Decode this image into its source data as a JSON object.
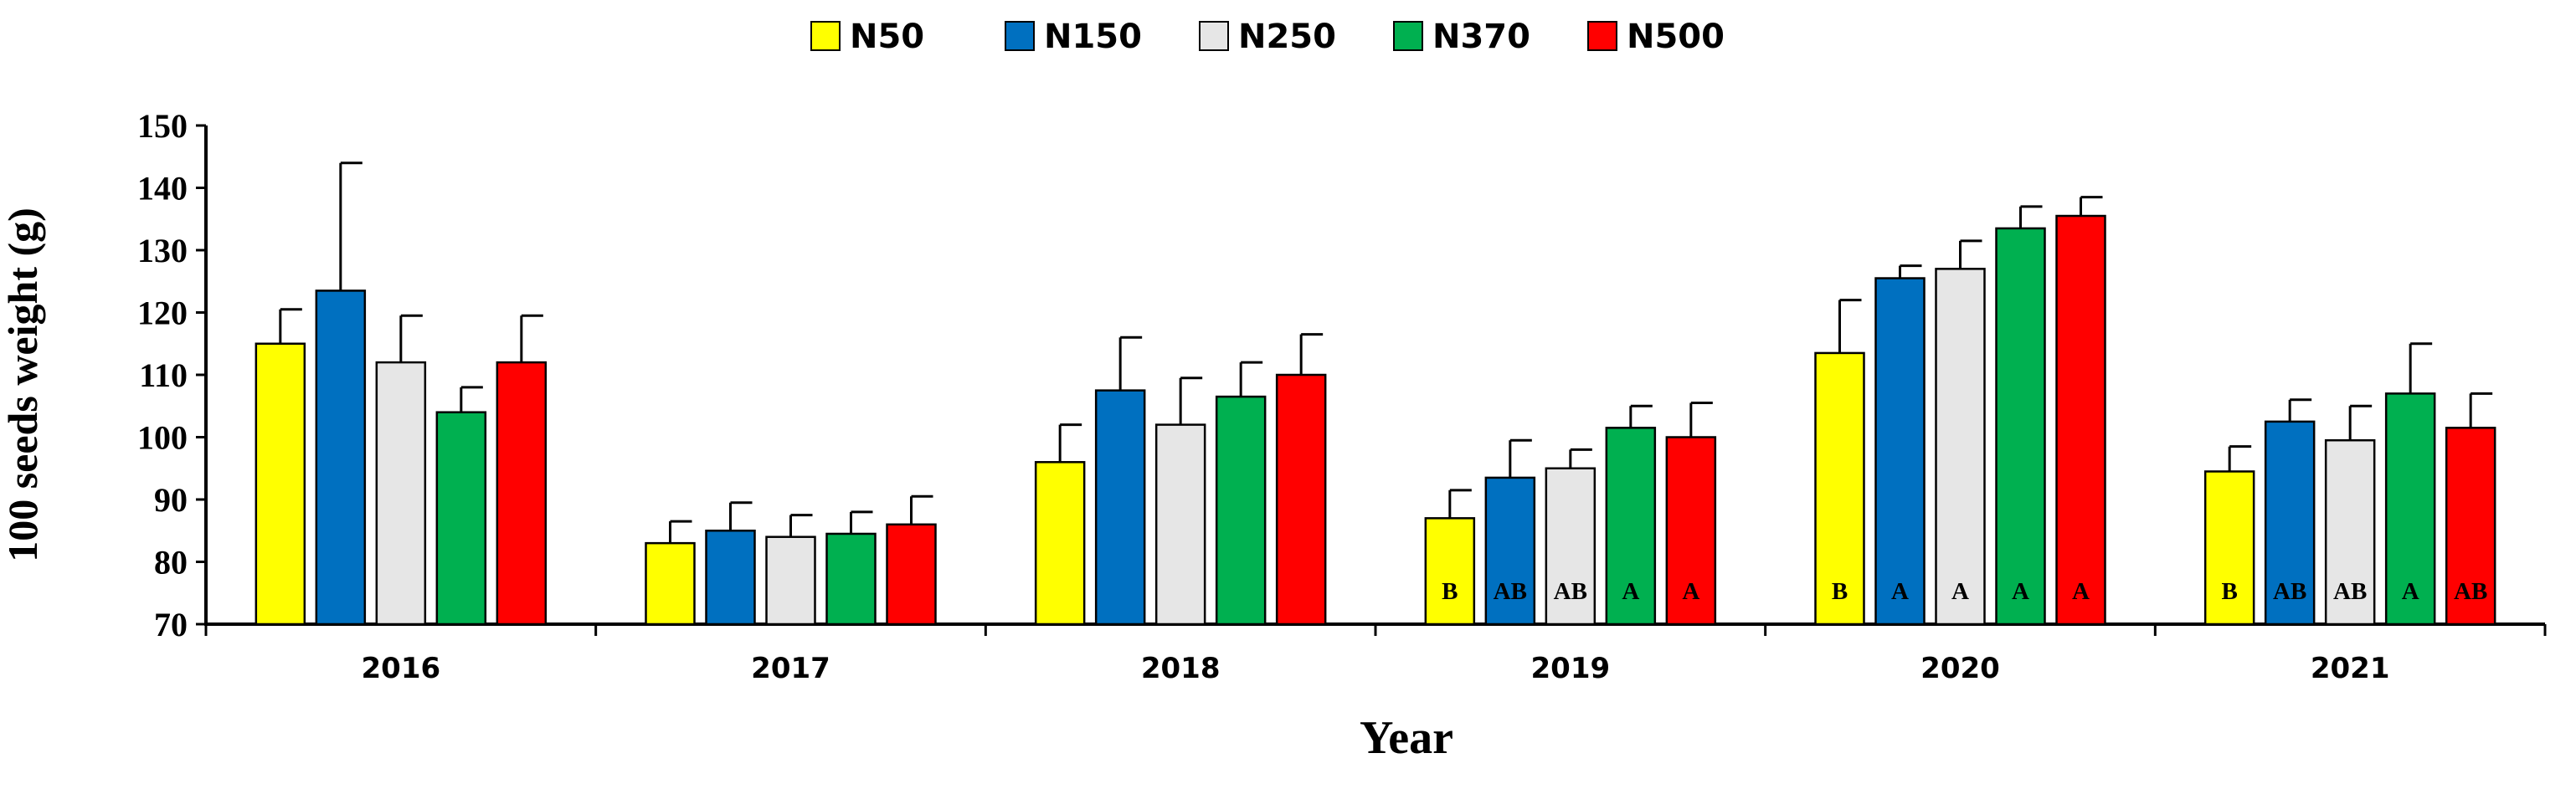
{
  "chart_data": {
    "type": "bar",
    "title": "",
    "xlabel": "Year",
    "ylabel": "100 seeds weight (g)",
    "ylim": [
      70,
      150
    ],
    "yticks": [
      70,
      80,
      90,
      100,
      110,
      120,
      130,
      140,
      150
    ],
    "ytick_labels": [
      "70",
      "80",
      "90",
      "100",
      "110",
      "120",
      "130",
      "140",
      "150"
    ],
    "categories": [
      "2016",
      "2017",
      "2018",
      "2019",
      "2020",
      "2021"
    ],
    "legend_position": "top-center",
    "series": [
      {
        "name": "N50",
        "color": "#ffff00",
        "values": [
          115,
          83,
          96,
          87,
          113.5,
          94.5
        ],
        "errors": [
          5.5,
          3.5,
          6,
          4.5,
          8.5,
          4
        ],
        "labels": [
          "",
          "",
          "",
          "B",
          "B",
          "B"
        ]
      },
      {
        "name": "N150",
        "color": "#0070c0",
        "values": [
          123.5,
          85,
          107.5,
          93.5,
          125.5,
          102.5
        ],
        "errors": [
          20.5,
          4.5,
          8.5,
          6,
          2,
          3.5
        ],
        "labels": [
          "",
          "",
          "",
          "AB",
          "A",
          "AB"
        ]
      },
      {
        "name": "N250",
        "color": "#e6e6e6",
        "values": [
          112,
          84,
          102,
          95,
          127,
          99.5
        ],
        "errors": [
          7.5,
          3.5,
          7.5,
          3,
          4.5,
          5.5
        ],
        "labels": [
          "",
          "",
          "",
          "AB",
          "A",
          "AB"
        ]
      },
      {
        "name": "N370",
        "color": "#00b050",
        "values": [
          104,
          84.5,
          106.5,
          101.5,
          133.5,
          107
        ],
        "errors": [
          4,
          3.5,
          5.5,
          3.5,
          3.5,
          8
        ],
        "labels": [
          "",
          "",
          "",
          "A",
          "A",
          "A"
        ]
      },
      {
        "name": "N500",
        "color": "#ff0000",
        "values": [
          112,
          86,
          110,
          100,
          135.5,
          101.5
        ],
        "errors": [
          7.5,
          4.5,
          6.5,
          5.5,
          3,
          5.5
        ],
        "labels": [
          "",
          "",
          "",
          "A",
          "A",
          "AB"
        ]
      }
    ]
  }
}
